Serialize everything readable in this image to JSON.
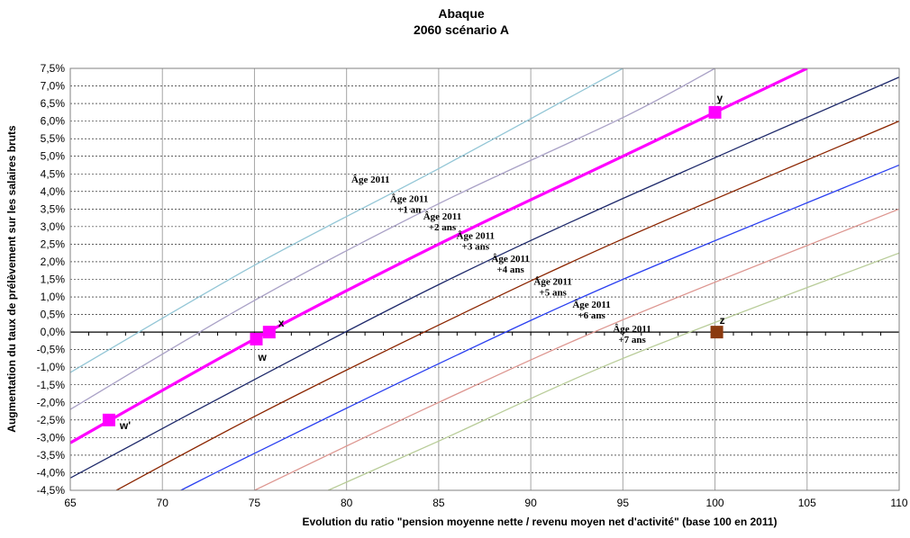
{
  "chart_data": {
    "type": "line",
    "title": "Abaque",
    "subtitle": "2060 scénario A",
    "xlabel": "Evolution du ratio \"pension moyenne nette / revenu moyen net d'activité\" (base 100 en 2011)",
    "ylabel": "Augmentation du taux de prélèvement sur les salaires bruts",
    "xlim": [
      65,
      110
    ],
    "ylim": [
      -4.5,
      7.5
    ],
    "x_ticks": [
      "65",
      "70",
      "75",
      "80",
      "85",
      "90",
      "95",
      "100",
      "105",
      "110"
    ],
    "y_ticks": [
      "7,5%",
      "7,0%",
      "6,5%",
      "6,0%",
      "5,5%",
      "5,0%",
      "4,5%",
      "4,0%",
      "3,5%",
      "3,0%",
      "2,5%",
      "2,0%",
      "1,5%",
      "1,0%",
      "0,5%",
      "0,0%",
      "-0,5%",
      "-1,0%",
      "-1,5%",
      "-2,0%",
      "-2,5%",
      "-3,0%",
      "-3,5%",
      "-4,0%",
      "-4,5%"
    ],
    "grid": true,
    "series": [
      {
        "label_lines": [
          "Âge 2011"
        ],
        "color": "#93c6d6",
        "width": 1.3,
        "points": [
          [
            65,
            -1.15
          ],
          [
            75,
            1.9
          ],
          [
            85,
            4.65
          ],
          [
            95,
            7.5
          ]
        ]
      },
      {
        "label_lines": [
          "Âge 2011",
          "+1 an"
        ],
        "color": "#a9a1c6",
        "width": 1.3,
        "points": [
          [
            65,
            -2.2
          ],
          [
            75,
            0.9
          ],
          [
            85,
            3.65
          ],
          [
            95,
            6.1
          ],
          [
            100,
            7.5
          ]
        ]
      },
      {
        "label_lines": [
          "Âge 2011",
          "+2 ans"
        ],
        "color": "#ff00ff",
        "width": 3.2,
        "points": [
          [
            65,
            -3.15
          ],
          [
            75,
            -0.2
          ],
          [
            85,
            2.5
          ],
          [
            95,
            5.0
          ],
          [
            105,
            7.5
          ]
        ]
      },
      {
        "label_lines": [
          "Âge 2011",
          "+3 ans"
        ],
        "color": "#1f2a6b",
        "width": 1.3,
        "points": [
          [
            65,
            -4.15
          ],
          [
            75,
            -1.35
          ],
          [
            85,
            1.35
          ],
          [
            95,
            3.8
          ],
          [
            110,
            7.25
          ]
        ]
      },
      {
        "label_lines": [
          "Âge 2011",
          "+4 ans"
        ],
        "color": "#8b2500",
        "width": 1.3,
        "points": [
          [
            67.5,
            -4.5
          ],
          [
            75,
            -2.4
          ],
          [
            85,
            0.2
          ],
          [
            95,
            2.65
          ],
          [
            110,
            6.0
          ]
        ]
      },
      {
        "label_lines": [
          "Âge 2011",
          "+5 ans"
        ],
        "color": "#2a3ff0",
        "width": 1.3,
        "points": [
          [
            71,
            -4.5
          ],
          [
            75,
            -3.45
          ],
          [
            85,
            -0.9
          ],
          [
            95,
            1.5
          ],
          [
            110,
            4.75
          ]
        ]
      },
      {
        "label_lines": [
          "Âge 2011",
          "+6 ans"
        ],
        "color": "#dd9690",
        "width": 1.3,
        "points": [
          [
            75,
            -4.5
          ],
          [
            85,
            -2.0
          ],
          [
            95,
            0.35
          ],
          [
            110,
            3.5
          ]
        ]
      },
      {
        "label_lines": [
          "Âge 2011",
          "+7 ans"
        ],
        "color": "#b8cc98",
        "width": 1.3,
        "points": [
          [
            79,
            -4.5
          ],
          [
            85,
            -3.1
          ],
          [
            95,
            -0.75
          ],
          [
            110,
            2.25
          ]
        ]
      }
    ],
    "points": [
      {
        "label": "y",
        "x": 100.0,
        "y": 6.25,
        "color": "#ff00ff"
      },
      {
        "label": "x",
        "x": 75.8,
        "y": 0.0,
        "color": "#ff00ff"
      },
      {
        "label": "w",
        "x": 75.1,
        "y": -0.2,
        "color": "#ff00ff"
      },
      {
        "label": "w'",
        "x": 67.1,
        "y": -2.5,
        "color": "#ff00ff"
      },
      {
        "label": "z",
        "x": 100.1,
        "y": 0.0,
        "color": "#8b3a0f"
      }
    ]
  }
}
